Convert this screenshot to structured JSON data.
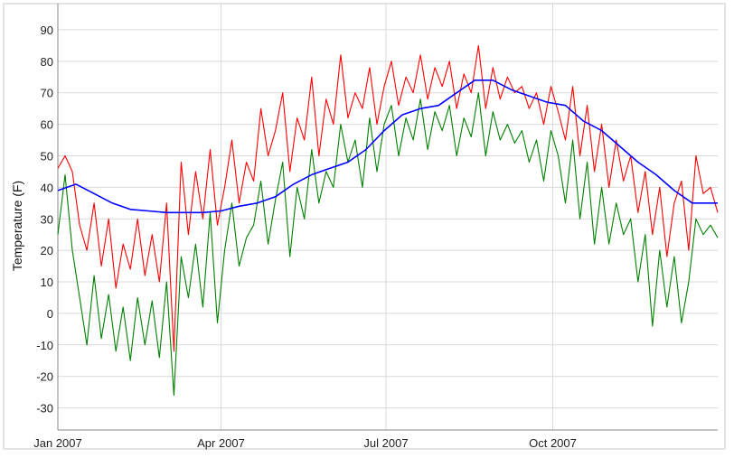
{
  "chart_data": {
    "type": "line",
    "title": "",
    "xlabel": "",
    "ylabel": "Temperature (F)",
    "xlim": [
      "2007-01-01",
      "2007-12-31"
    ],
    "ylim": [
      -37,
      96
    ],
    "yticks": [
      -30,
      -20,
      -10,
      0,
      10,
      20,
      30,
      40,
      50,
      60,
      70,
      80,
      90
    ],
    "xticks": [
      {
        "date": "2007-01-01",
        "label": "Jan 2007"
      },
      {
        "date": "2007-04-01",
        "label": "Apr 2007"
      },
      {
        "date": "2007-07-01",
        "label": "Jul 2007"
      },
      {
        "date": "2007-10-01",
        "label": "Oct 2007"
      }
    ],
    "grid": true,
    "colors": {
      "max": "#ff0000",
      "min": "#008000",
      "avg": "#0000ff",
      "grid": "#d9d9d9",
      "frame": "#e3e3e6"
    },
    "series": [
      {
        "color": "#ff0000",
        "x": [
          "2007-01-01",
          "2007-01-05",
          "2007-01-09",
          "2007-01-13",
          "2007-01-17",
          "2007-01-21",
          "2007-01-25",
          "2007-01-29",
          "2007-02-02",
          "2007-02-06",
          "2007-02-10",
          "2007-02-14",
          "2007-02-18",
          "2007-02-22",
          "2007-02-26",
          "2007-03-02",
          "2007-03-06",
          "2007-03-10",
          "2007-03-14",
          "2007-03-18",
          "2007-03-22",
          "2007-03-26",
          "2007-03-30",
          "2007-04-03",
          "2007-04-07",
          "2007-04-11",
          "2007-04-15",
          "2007-04-19",
          "2007-04-23",
          "2007-04-27",
          "2007-05-01",
          "2007-05-05",
          "2007-05-09",
          "2007-05-13",
          "2007-05-17",
          "2007-05-21",
          "2007-05-25",
          "2007-05-29",
          "2007-06-02",
          "2007-06-06",
          "2007-06-10",
          "2007-06-14",
          "2007-06-18",
          "2007-06-22",
          "2007-06-26",
          "2007-06-30",
          "2007-07-04",
          "2007-07-08",
          "2007-07-12",
          "2007-07-16",
          "2007-07-20",
          "2007-07-24",
          "2007-07-28",
          "2007-08-01",
          "2007-08-05",
          "2007-08-09",
          "2007-08-13",
          "2007-08-17",
          "2007-08-21",
          "2007-08-25",
          "2007-08-29",
          "2007-09-02",
          "2007-09-06",
          "2007-09-10",
          "2007-09-14",
          "2007-09-18",
          "2007-09-22",
          "2007-09-26",
          "2007-09-30",
          "2007-10-04",
          "2007-10-08",
          "2007-10-12",
          "2007-10-16",
          "2007-10-20",
          "2007-10-24",
          "2007-10-28",
          "2007-11-01",
          "2007-11-05",
          "2007-11-09",
          "2007-11-13",
          "2007-11-17",
          "2007-11-21",
          "2007-11-25",
          "2007-11-29",
          "2007-12-03",
          "2007-12-07",
          "2007-12-11",
          "2007-12-15",
          "2007-12-19",
          "2007-12-23",
          "2007-12-27",
          "2007-12-31"
        ],
        "y": [
          46,
          50,
          45,
          28,
          20,
          35,
          15,
          30,
          8,
          22,
          14,
          30,
          12,
          25,
          10,
          35,
          -12,
          48,
          25,
          45,
          30,
          52,
          28,
          40,
          55,
          35,
          48,
          42,
          65,
          50,
          58,
          70,
          45,
          62,
          55,
          75,
          50,
          68,
          60,
          82,
          62,
          70,
          65,
          78,
          60,
          72,
          80,
          66,
          75,
          70,
          82,
          68,
          78,
          72,
          80,
          65,
          76,
          70,
          85,
          65,
          78,
          68,
          75,
          70,
          72,
          65,
          70,
          60,
          72,
          64,
          55,
          72,
          50,
          66,
          45,
          60,
          40,
          55,
          42,
          50,
          32,
          45,
          25,
          40,
          18,
          35,
          42,
          20,
          50,
          38,
          40,
          32
        ]
      },
      {
        "color": "#008000",
        "x": [
          "2007-01-01",
          "2007-01-05",
          "2007-01-09",
          "2007-01-13",
          "2007-01-17",
          "2007-01-21",
          "2007-01-25",
          "2007-01-29",
          "2007-02-02",
          "2007-02-06",
          "2007-02-10",
          "2007-02-14",
          "2007-02-18",
          "2007-02-22",
          "2007-02-26",
          "2007-03-02",
          "2007-03-06",
          "2007-03-10",
          "2007-03-14",
          "2007-03-18",
          "2007-03-22",
          "2007-03-26",
          "2007-03-30",
          "2007-04-03",
          "2007-04-07",
          "2007-04-11",
          "2007-04-15",
          "2007-04-19",
          "2007-04-23",
          "2007-04-27",
          "2007-05-01",
          "2007-05-05",
          "2007-05-09",
          "2007-05-13",
          "2007-05-17",
          "2007-05-21",
          "2007-05-25",
          "2007-05-29",
          "2007-06-02",
          "2007-06-06",
          "2007-06-10",
          "2007-06-14",
          "2007-06-18",
          "2007-06-22",
          "2007-06-26",
          "2007-06-30",
          "2007-07-04",
          "2007-07-08",
          "2007-07-12",
          "2007-07-16",
          "2007-07-20",
          "2007-07-24",
          "2007-07-28",
          "2007-08-01",
          "2007-08-05",
          "2007-08-09",
          "2007-08-13",
          "2007-08-17",
          "2007-08-21",
          "2007-08-25",
          "2007-08-29",
          "2007-09-02",
          "2007-09-06",
          "2007-09-10",
          "2007-09-14",
          "2007-09-18",
          "2007-09-22",
          "2007-09-26",
          "2007-09-30",
          "2007-10-04",
          "2007-10-08",
          "2007-10-12",
          "2007-10-16",
          "2007-10-20",
          "2007-10-24",
          "2007-10-28",
          "2007-11-01",
          "2007-11-05",
          "2007-11-09",
          "2007-11-13",
          "2007-11-17",
          "2007-11-21",
          "2007-11-25",
          "2007-11-29",
          "2007-12-03",
          "2007-12-07",
          "2007-12-11",
          "2007-12-15",
          "2007-12-19",
          "2007-12-23",
          "2007-12-27",
          "2007-12-31"
        ],
        "y": [
          25,
          44,
          20,
          5,
          -10,
          12,
          -8,
          6,
          -12,
          2,
          -15,
          5,
          -10,
          4,
          -14,
          10,
          -26,
          18,
          5,
          22,
          2,
          32,
          -3,
          20,
          35,
          15,
          24,
          28,
          42,
          22,
          36,
          48,
          18,
          40,
          30,
          52,
          35,
          45,
          40,
          60,
          48,
          55,
          40,
          62,
          45,
          60,
          66,
          50,
          62,
          55,
          68,
          52,
          64,
          58,
          66,
          50,
          62,
          56,
          70,
          50,
          64,
          55,
          60,
          54,
          58,
          48,
          55,
          42,
          58,
          50,
          35,
          55,
          30,
          48,
          22,
          40,
          22,
          35,
          25,
          30,
          10,
          25,
          -4,
          20,
          2,
          18,
          -3,
          10,
          30,
          25,
          28,
          24
        ]
      },
      {
        "color": "#0000ff",
        "x": [
          "2007-01-01",
          "2007-01-11",
          "2007-01-21",
          "2007-01-31",
          "2007-02-10",
          "2007-02-20",
          "2007-03-02",
          "2007-03-12",
          "2007-03-22",
          "2007-04-01",
          "2007-04-11",
          "2007-04-21",
          "2007-05-01",
          "2007-05-11",
          "2007-05-21",
          "2007-05-31",
          "2007-06-10",
          "2007-06-20",
          "2007-06-30",
          "2007-07-10",
          "2007-07-20",
          "2007-07-30",
          "2007-08-09",
          "2007-08-19",
          "2007-08-29",
          "2007-09-08",
          "2007-09-18",
          "2007-09-28",
          "2007-10-08",
          "2007-10-18",
          "2007-10-28",
          "2007-11-07",
          "2007-11-17",
          "2007-11-27",
          "2007-12-07",
          "2007-12-17",
          "2007-12-27",
          "2007-12-31"
        ],
        "y": [
          39,
          41,
          38,
          35,
          33,
          32.5,
          32,
          32,
          32,
          32.5,
          34,
          35,
          37,
          41,
          44,
          46,
          48,
          52,
          58,
          63,
          65,
          66,
          70,
          74,
          74,
          71,
          69,
          67,
          66,
          61,
          58,
          53,
          48,
          44,
          39,
          35,
          35,
          35
        ]
      }
    ]
  }
}
